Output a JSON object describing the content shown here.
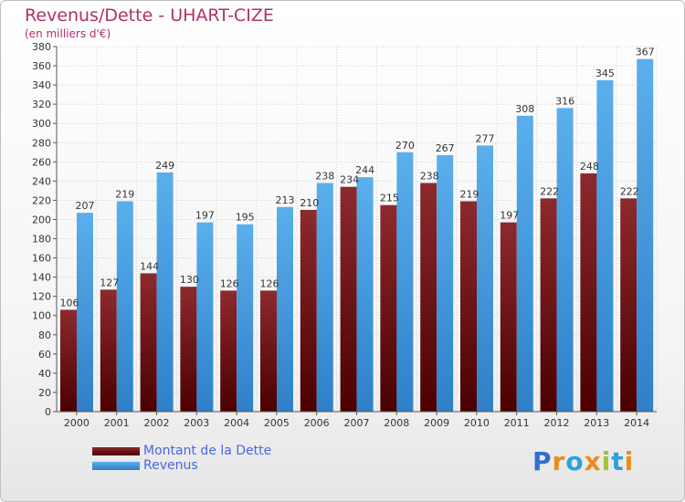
{
  "header": {
    "title": "Revenus/Dette - UHART-CIZE",
    "subtitle": "(en milliers d'€)"
  },
  "legend": {
    "items": [
      {
        "label": "Montant de la Dette",
        "color": "#7a1e22"
      },
      {
        "label": "Revenus",
        "color": "#4a9fe0"
      }
    ]
  },
  "logo": {
    "text": "Proxiti",
    "letters": [
      {
        "ch": "P",
        "color": "#2f6fd0"
      },
      {
        "ch": "r",
        "color": "#f08a1c"
      },
      {
        "ch": "o",
        "color": "#29a3d8"
      },
      {
        "ch": "x",
        "color": "#f08a1c"
      },
      {
        "ch": "i",
        "color": "#9ac43c"
      },
      {
        "ch": "t",
        "color": "#29a3d8"
      },
      {
        "ch": "i",
        "color": "#f08a1c"
      }
    ]
  },
  "chart_data": {
    "type": "bar",
    "title": "Revenus/Dette - UHART-CIZE",
    "subtitle": "(en milliers d'€)",
    "categories": [
      "2000",
      "2001",
      "2002",
      "2003",
      "2004",
      "2005",
      "2006",
      "2007",
      "2008",
      "2009",
      "2010",
      "2011",
      "2012",
      "2013",
      "2014"
    ],
    "series": [
      {
        "name": "Montant de la Dette",
        "color": "#7a1e22",
        "values": [
          106,
          127,
          144,
          130,
          126,
          126,
          210,
          234,
          215,
          238,
          219,
          197,
          222,
          248,
          222
        ]
      },
      {
        "name": "Revenus",
        "color": "#4a9fe0",
        "values": [
          207,
          219,
          249,
          197,
          195,
          213,
          238,
          244,
          270,
          267,
          277,
          308,
          316,
          345,
          367
        ]
      }
    ],
    "ylim": [
      0,
      380
    ],
    "yticks": [
      0,
      20,
      40,
      60,
      80,
      100,
      120,
      140,
      160,
      180,
      200,
      220,
      240,
      260,
      280,
      300,
      320,
      340,
      360,
      380
    ],
    "grid": true,
    "legend_position": "bottom-left"
  }
}
